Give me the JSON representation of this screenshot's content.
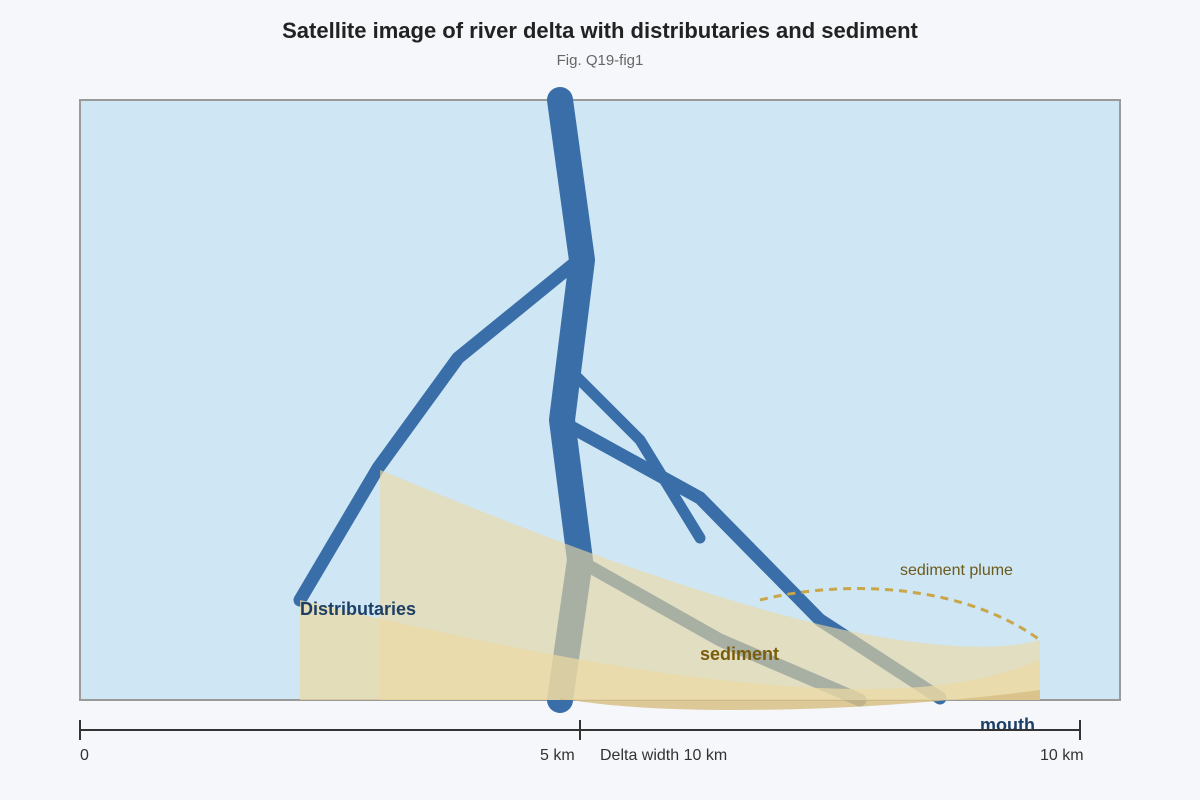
{
  "title": "Satellite image of river delta with distributaries and sediment",
  "subtitle": "Fig. Q19-fig1",
  "labels": {
    "distributaries": "Distributaries",
    "sediment": "sediment",
    "sediment_plume": "sediment plume",
    "mouth": "mouth"
  },
  "scale_bar": {
    "tick_0": "0",
    "tick_mid": "5 km",
    "tick_end": "10 km",
    "caption": "Delta width 10 km"
  },
  "colors": {
    "water": "#cfe6f4",
    "frame": "#9a9a9a",
    "river": "#3a6ea8",
    "sediment": "#ecd9a2",
    "sediment_dark": "#d8bf86",
    "plume": "#c9a64a",
    "label_blue": "#1d3f66",
    "label_sediment": "#7a5c0a",
    "label_plume": "#6b5a1a"
  }
}
